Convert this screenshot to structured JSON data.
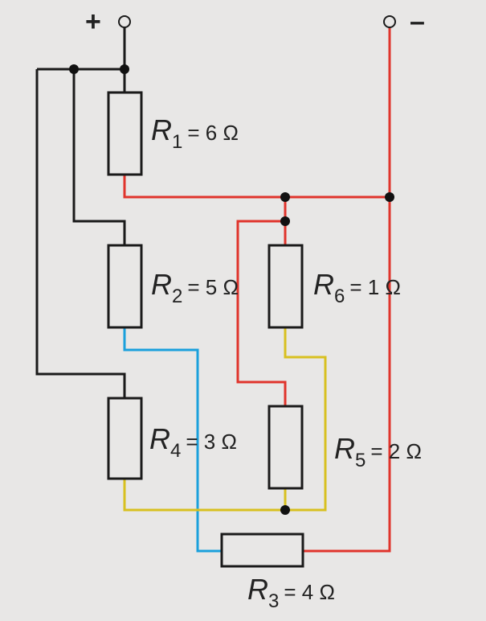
{
  "terminals": {
    "plus": "+",
    "minus": "–"
  },
  "resistors": {
    "r1": {
      "name": "R",
      "sub": "1",
      "value": "= 6 Ω"
    },
    "r2": {
      "name": "R",
      "sub": "2",
      "value": "= 5 Ω"
    },
    "r3": {
      "name": "R",
      "sub": "3",
      "value": "= 4 Ω"
    },
    "r4": {
      "name": "R",
      "sub": "4",
      "value": "= 3 Ω"
    },
    "r5": {
      "name": "R",
      "sub": "5",
      "value": "= 2 Ω"
    },
    "r6": {
      "name": "R",
      "sub": "6",
      "value": "= 1 Ω"
    }
  },
  "colors": {
    "black": "#1a1a1a",
    "red": "#e0342c",
    "yellow": "#d8c020",
    "blue": "#1aa0dc",
    "background": "#e8e7e6"
  }
}
